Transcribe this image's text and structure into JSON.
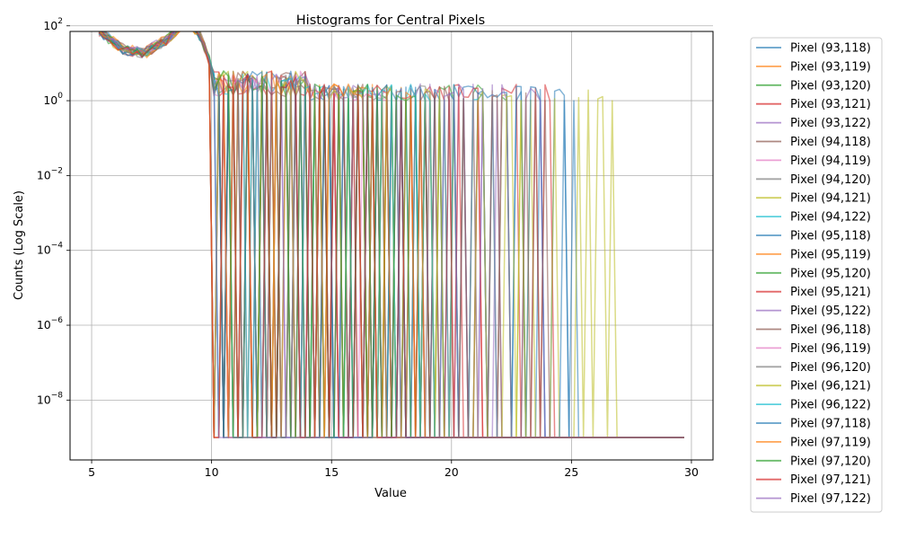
{
  "chart_data": {
    "type": "line",
    "title": "Histograms for Central Pixels",
    "xlabel": "Value",
    "ylabel": "Counts (Log Scale)",
    "xlim": [
      4.1,
      30.9
    ],
    "ylim_log10": [
      -9.6,
      1.85
    ],
    "yscale": "log",
    "grid": true,
    "legend_position": "outside-right",
    "x_ticks": [
      {
        "v": 5,
        "label": "5"
      },
      {
        "v": 10,
        "label": "10"
      },
      {
        "v": 15,
        "label": "15"
      },
      {
        "v": 20,
        "label": "20"
      },
      {
        "v": 25,
        "label": "25"
      },
      {
        "v": 30,
        "label": "30"
      }
    ],
    "y_ticks": [
      {
        "e": 2,
        "label": "2"
      },
      {
        "e": 0,
        "label": "0"
      },
      {
        "e": -2,
        "label": "−2"
      },
      {
        "e": -4,
        "label": "−4"
      },
      {
        "e": -6,
        "label": "−6"
      },
      {
        "e": -8,
        "label": "−8"
      }
    ],
    "series": [
      {
        "name": "Pixel (93,118)",
        "color": "#1f77b4",
        "max_value": 25.2
      },
      {
        "name": "Pixel (93,119)",
        "color": "#ff7f0e",
        "max_value": 18.6
      },
      {
        "name": "Pixel (93,120)",
        "color": "#2ca02c",
        "max_value": 22.3
      },
      {
        "name": "Pixel (93,121)",
        "color": "#d62728",
        "max_value": 24.2
      },
      {
        "name": "Pixel (93,122)",
        "color": "#9467bd",
        "max_value": 21.8
      },
      {
        "name": "Pixel (94,118)",
        "color": "#8c564b",
        "max_value": 20.0
      },
      {
        "name": "Pixel (94,119)",
        "color": "#e377c2",
        "max_value": 17.3
      },
      {
        "name": "Pixel (94,120)",
        "color": "#7f7f7f",
        "max_value": 19.5
      },
      {
        "name": "Pixel (94,121)",
        "color": "#bcbd22",
        "max_value": 26.6
      },
      {
        "name": "Pixel (94,122)",
        "color": "#17becf",
        "max_value": 21.6
      },
      {
        "name": "Pixel (95,118)",
        "color": "#1f77b4",
        "max_value": 24.6
      },
      {
        "name": "Pixel (95,119)",
        "color": "#ff7f0e",
        "max_value": 18.3
      },
      {
        "name": "Pixel (95,120)",
        "color": "#2ca02c",
        "max_value": 19.0
      },
      {
        "name": "Pixel (95,121)",
        "color": "#d62728",
        "max_value": 21.1
      },
      {
        "name": "Pixel (95,122)",
        "color": "#9467bd",
        "max_value": 23.6
      },
      {
        "name": "Pixel (96,118)",
        "color": "#8c564b",
        "max_value": 23.9
      },
      {
        "name": "Pixel (96,119)",
        "color": "#e377c2",
        "max_value": 16.9
      },
      {
        "name": "Pixel (96,120)",
        "color": "#7f7f7f",
        "max_value": 17.6
      },
      {
        "name": "Pixel (96,121)",
        "color": "#bcbd22",
        "max_value": 22.9
      },
      {
        "name": "Pixel (96,122)",
        "color": "#17becf",
        "max_value": 19.2
      },
      {
        "name": "Pixel (97,118)",
        "color": "#1f77b4",
        "max_value": 17.9
      },
      {
        "name": "Pixel (97,119)",
        "color": "#ff7f0e",
        "max_value": 18.7
      },
      {
        "name": "Pixel (97,120)",
        "color": "#2ca02c",
        "max_value": 18.2
      },
      {
        "name": "Pixel (97,121)",
        "color": "#d62728",
        "max_value": 18.0
      },
      {
        "name": "Pixel (97,122)",
        "color": "#9467bd",
        "max_value": 10.2
      }
    ]
  }
}
